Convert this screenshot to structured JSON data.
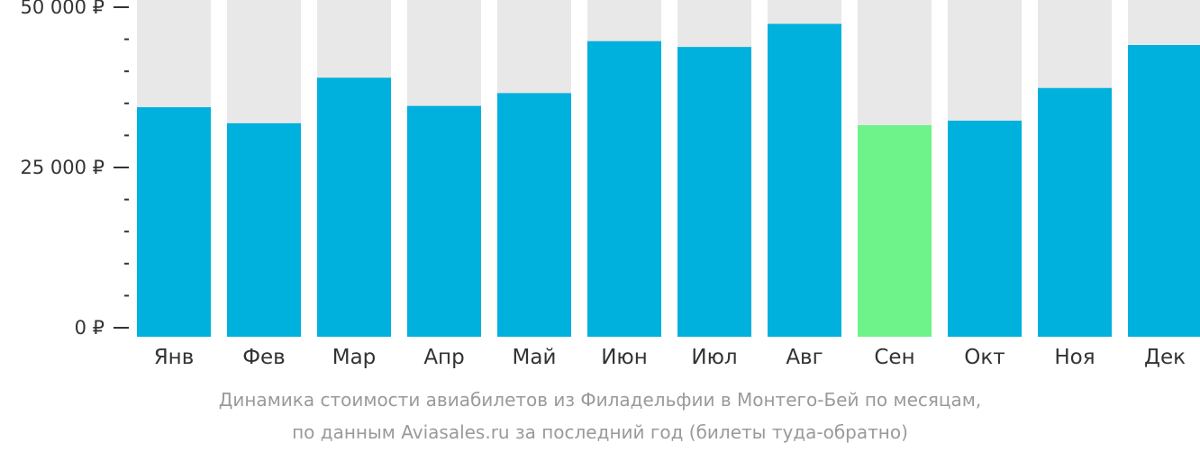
{
  "chart_data": {
    "type": "bar",
    "categories": [
      "Янв",
      "Фев",
      "Мар",
      "Апр",
      "Май",
      "Июн",
      "Июл",
      "Авг",
      "Сен",
      "Окт",
      "Ноя",
      "Дек"
    ],
    "values": [
      34400,
      31900,
      39000,
      34600,
      36600,
      44700,
      43800,
      47400,
      31600,
      32300,
      37400,
      44100
    ],
    "ylim": [
      0,
      52000
    ],
    "y_tick_labels": [
      "0 ₽",
      "25 000 ₽",
      "50 000 ₽"
    ],
    "y_tick_values": [
      0,
      25000,
      50000
    ],
    "highlight_index": 8,
    "colors": {
      "bar": "#00b0dd",
      "highlight": "#6ef28a",
      "background_bar": "#e8e8e8",
      "axis_text": "#333333"
    }
  },
  "caption": {
    "line1": "Динамика стоимости авиабилетов из Филадельфии в Монтего-Бей по месяцам,",
    "line2": "по данным Aviasales.ru за последний год (билеты туда-обратно)"
  }
}
